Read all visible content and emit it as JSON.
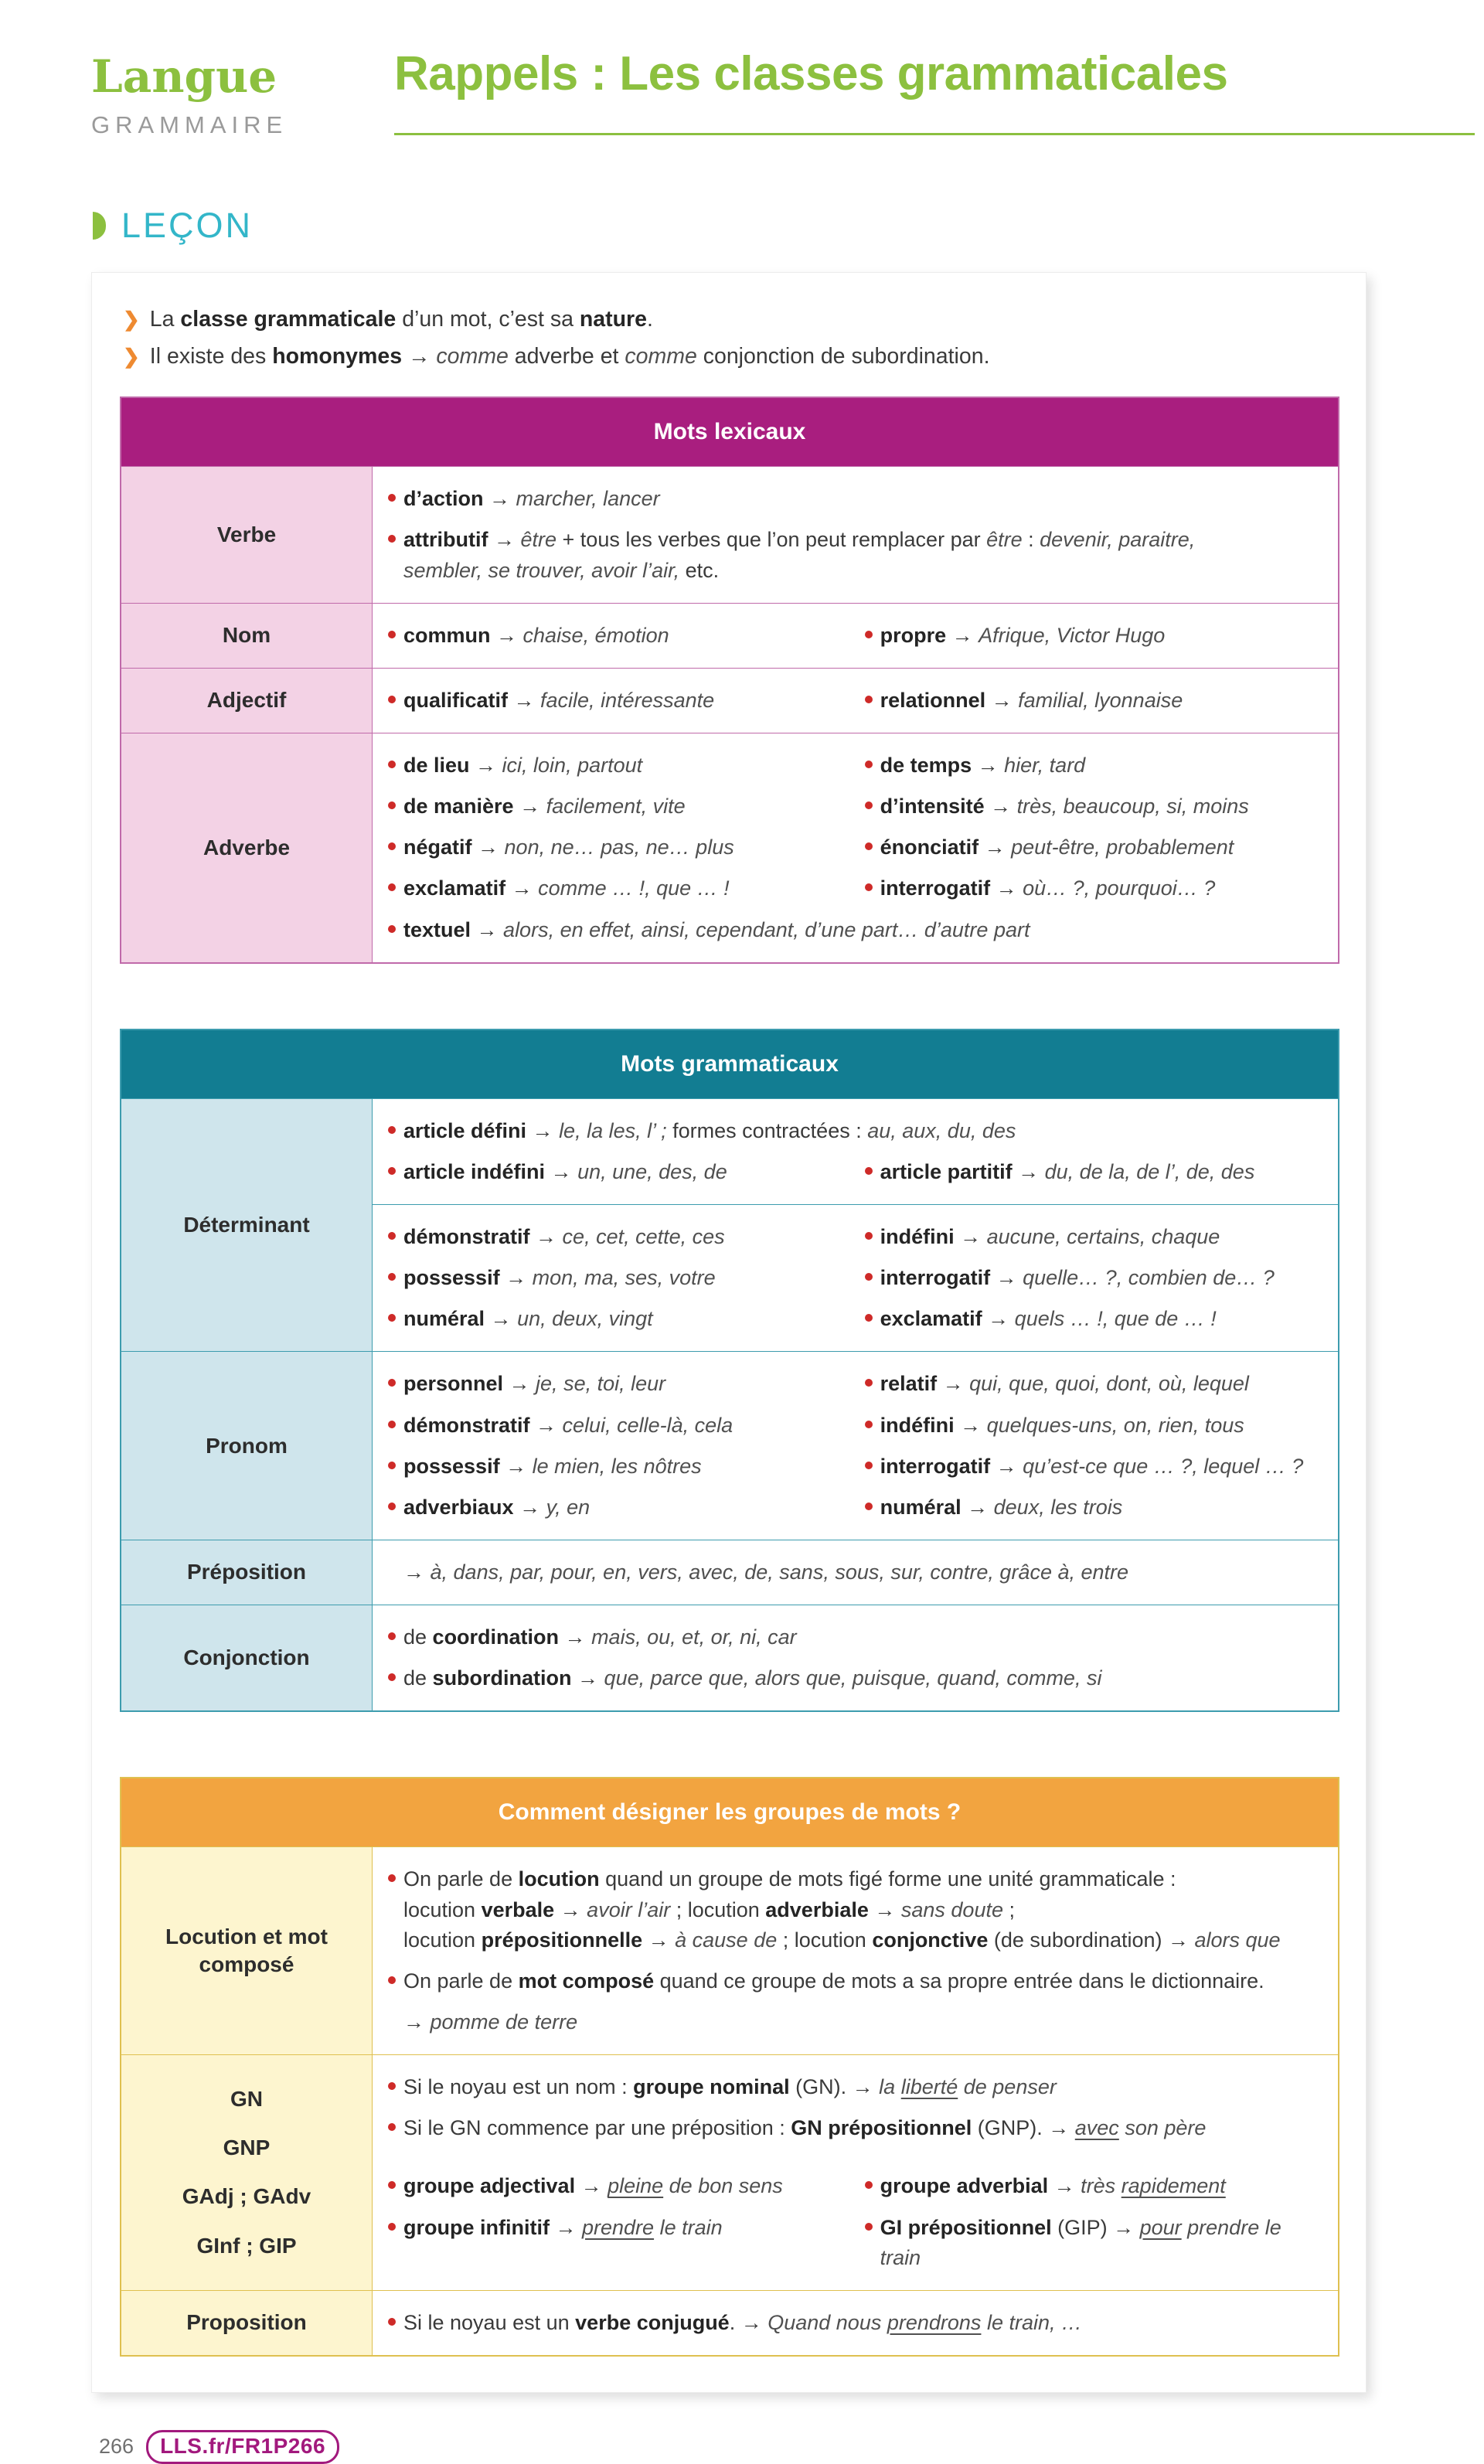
{
  "page": {
    "brand": "Langue",
    "brand_sub": "GRAMMAIRE",
    "title": "Rappels : Les classes grammaticales",
    "section": "LEÇON",
    "bullet_icon": "❯",
    "footer_page": "266",
    "footer_link": "LLS.fr/FR1P266",
    "accent_green": "#8cc03f",
    "accent_teal": "#33b6c9",
    "accent_orange": "#ee8a31",
    "bullet_red": "#ce2a28",
    "badge_magenta": "#a2197d"
  },
  "intro": [
    "La <b>classe grammaticale</b> d’un mot, c’est sa <b>nature</b>.",
    "Il existe des <b>homonymes</b> → <i>comme</i> adverbe et <i>comme</i> conjonction de subordination."
  ],
  "tables": [
    {
      "name": "mots-lexicaux",
      "header": "Mots lexicaux",
      "theme": {
        "header_bg": "#a91e7f",
        "label_bg": "#f3d2e5",
        "border": "#c06aaa"
      },
      "rows": [
        {
          "label": "Verbe",
          "sections": [
            {
              "lines": [
                {
                  "cols": 1,
                  "items": [
                    "<b>d’action</b> → <i>marcher, lancer</i>",
                    "<b>attributif</b> → <i>être</i> + tous les verbes que l’on peut remplacer par <i>être</i> : <i>devenir, paraitre,</i><br><i>sembler, se trouver, avoir l’air,</i> etc."
                  ]
                }
              ]
            }
          ]
        },
        {
          "label": "Nom",
          "sections": [
            {
              "lines": [
                {
                  "cols": 2,
                  "items": [
                    "<b>commun</b> → <i>chaise, émotion</i>",
                    "<b>propre</b> → <i>Afrique, Victor Hugo</i>"
                  ]
                }
              ]
            }
          ]
        },
        {
          "label": "Adjectif",
          "sections": [
            {
              "lines": [
                {
                  "cols": 2,
                  "items": [
                    "<b>qualificatif</b> → <i>facile, intéressante</i>",
                    "<b>relationnel</b> → <i>familial, lyonnaise</i>"
                  ]
                }
              ]
            }
          ]
        },
        {
          "label": "Adverbe",
          "sections": [
            {
              "lines": [
                {
                  "cols": 2,
                  "items": [
                    "<b>de lieu</b> → <i>ici, loin, partout</i>",
                    "<b>de temps</b> → <i>hier, tard</i>",
                    "<b>de manière</b> → <i>facilement, vite</i>",
                    "<b>d’intensité</b> → <i>très, beaucoup, si, moins</i>",
                    "<b>négatif</b> → <i>non, ne… pas, ne… plus</i>",
                    "<b>énonciatif</b> → <i>peut-être, probablement</i>",
                    "<b>exclamatif</b> → <i>comme … !, que … !</i>",
                    "<b>interrogatif</b> → <i>où… ?, pourquoi… ?</i>"
                  ]
                },
                {
                  "cols": 1,
                  "items": [
                    "<b>textuel</b> → <i>alors, en effet, ainsi, cependant, d’une part… d’autre part</i>"
                  ]
                }
              ]
            }
          ]
        }
      ]
    },
    {
      "name": "mots-grammaticaux",
      "header": "Mots grammaticaux",
      "theme": {
        "header_bg": "#127d92",
        "label_bg": "#cfe5ec",
        "border": "#3d9cae"
      },
      "rows": [
        {
          "label": "Déterminant",
          "sections": [
            {
              "lines": [
                {
                  "cols": 1,
                  "items": [
                    "<b>article défini</b> → <i>le, la les, l’ ;</i> formes contractées : <i>au, aux, du, des</i>"
                  ]
                },
                {
                  "cols": 2,
                  "items": [
                    "<b>article indéfini</b> → <i>un, une, des, de</i>",
                    "<b>article partitif</b> → <i>du, de la, de l’, de, des</i>"
                  ]
                }
              ]
            },
            {
              "lines": [
                {
                  "cols": 2,
                  "items": [
                    "<b>démonstratif</b> → <i>ce, cet, cette, ces</i>",
                    "<b>indéfini</b> → <i>aucune, certains, chaque</i>",
                    "<b>possessif</b> → <i>mon, ma, ses, votre</i>",
                    "<b>interrogatif</b> → <i>quelle… ?, combien de… ?</i>",
                    "<b>numéral</b> → <i>un, deux, vingt</i>",
                    "<b>exclamatif</b> → <i>quels … !, que de … !</i>"
                  ]
                }
              ]
            }
          ]
        },
        {
          "label": "Pronom",
          "sections": [
            {
              "lines": [
                {
                  "cols": 2,
                  "items": [
                    "<b>personnel</b> → <i>je, se, toi, leur</i>",
                    "<b>relatif</b> → <i>qui, que, quoi, dont, où, lequel</i>",
                    "<b>démonstratif</b> → <i>celui, celle-là, cela</i>",
                    "<b>indéfini</b> → <i>quelques-uns, on, rien, tous</i>",
                    "<b>possessif</b> → <i>le mien, les nôtres</i>",
                    "<b>interrogatif</b> → <i>qu’est-ce que … ?, lequel … ?</i>",
                    "<b>adverbiaux</b> → <i>y, en</i>",
                    "<b>numéral</b> → <i>deux, les trois</i>"
                  ]
                }
              ]
            }
          ]
        },
        {
          "label": "Préposition",
          "sections": [
            {
              "lines": [
                {
                  "cols": 1,
                  "items": [
                    {
                      "t": "→ <i>à, dans, par, pour, en, vers, avec, de, sans, sous, sur, contre, grâce à, entre</i>",
                      "bullet": false
                    }
                  ]
                }
              ]
            }
          ]
        },
        {
          "label": "Conjonction",
          "sections": [
            {
              "lines": [
                {
                  "cols": 1,
                  "items": [
                    "de <b>coordination</b> → <i>mais, ou, et, or, ni, car</i>",
                    "de <b>subordination</b> → <i>que, parce que, alors que, puisque, quand, comme, si</i>"
                  ]
                }
              ]
            }
          ]
        }
      ]
    },
    {
      "name": "groupes-de-mots",
      "header": "Comment désigner les groupes de mots ?",
      "theme": {
        "header_bg": "#f2a440",
        "label_bg": "#fdf5cf",
        "border": "#dfc050"
      },
      "rows": [
        {
          "label": "Locution et mot composé",
          "sections": [
            {
              "lines": [
                {
                  "cols": 1,
                  "items": [
                    "On parle de <b>locution</b> quand un groupe de mots figé forme une unité grammaticale :<br>locution <b>verbale</b> → <i>avoir l’air</i> ; locution <b>adverbiale</b> → <i>sans doute</i> ;<br>locution <b>prépositionnelle</b> → <i>à cause de</i> ; locution <b>conjonctive</b> (de subordination) → <i>alors que</i>",
                    "On parle de <b>mot composé</b> quand ce groupe de mots a sa propre entrée dans le dictionnaire.",
                    {
                      "t": "→ <i>pomme de terre</i>",
                      "bullet": false
                    }
                  ]
                }
              ]
            }
          ]
        },
        {
          "label": [
            "GN",
            "GNP",
            "GAdj ; GAdv",
            "GInf ; GIP"
          ],
          "sections": [
            {
              "lines": [
                {
                  "cols": 1,
                  "items": [
                    "Si le noyau est un nom : <b>groupe nominal</b> (GN). → <i>la <u>liberté</u> de penser</i>",
                    "Si le GN commence par une préposition : <b>GN prépositionnel</b> (GNP). → <i><u>avec</u> son père</i>"
                  ]
                },
                {
                  "cols": 2,
                  "gap": true,
                  "items": [
                    "<b>groupe adjectival</b> → <i><u>pleine</u> de bon sens</i>",
                    "<b>groupe adverbial</b> → <i>très <u>rapidement</u></i>",
                    "<b>groupe infinitif</b> → <i><u>prendre</u> le train</i>",
                    "<b>GI prépositionnel</b> (GIP) → <i><u>pour</u> prendre le train</i>"
                  ]
                }
              ]
            }
          ]
        },
        {
          "label": "Proposition",
          "sections": [
            {
              "lines": [
                {
                  "cols": 1,
                  "items": [
                    "Si le noyau est un <b>verbe conjugué</b>. → <i>Quand nous <u>prendrons</u> le train, …</i>"
                  ]
                }
              ]
            }
          ]
        }
      ]
    }
  ]
}
